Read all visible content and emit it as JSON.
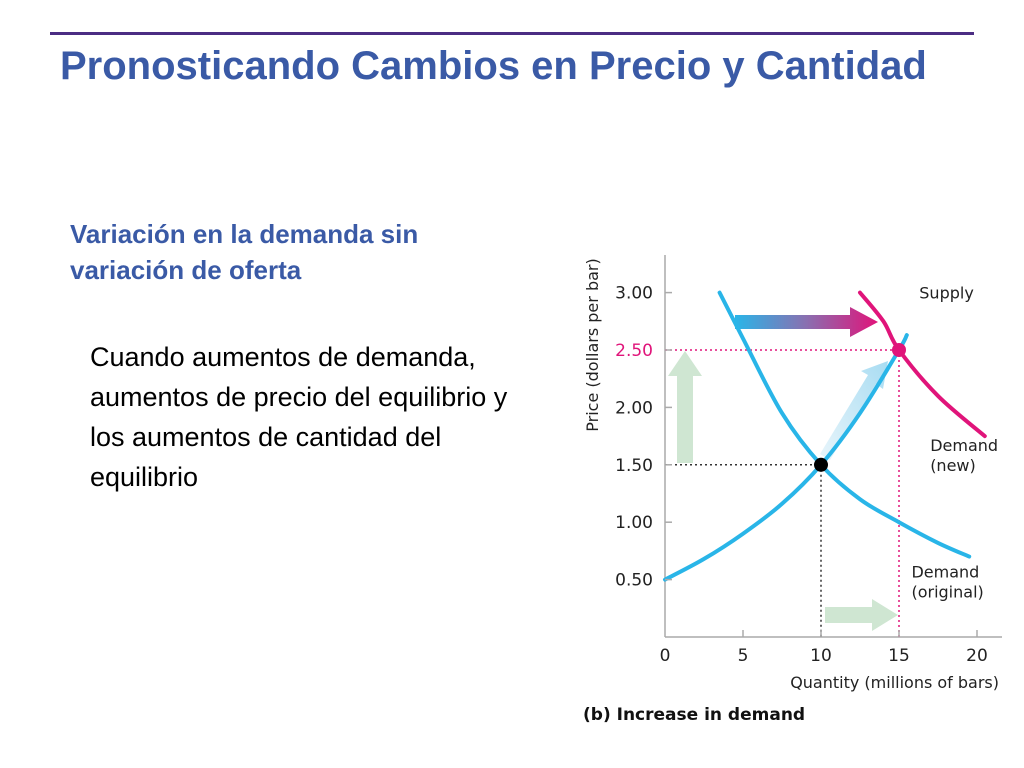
{
  "slide": {
    "title": "Pronosticando Cambios en Precio y Cantidad",
    "subtitle": "Variación en la demanda sin variación de oferta",
    "body": "Cuando aumentos de demanda, aumentos de precio del equilibrio y los aumentos de cantidad del equilibrio"
  },
  "colors": {
    "title": "#3a5aa6",
    "rule": "#4b2d83",
    "curve_blue": "#29b5e8",
    "curve_magenta": "#e0147a",
    "arrow_green": "#cfe6d2"
  },
  "chart_data": {
    "type": "line",
    "caption": "(b) Increase in demand",
    "xlabel": "Quantity (millions of bars)",
    "ylabel": "Price (dollars per bar)",
    "xlim": [
      0,
      21
    ],
    "ylim": [
      0,
      3.3
    ],
    "xticks": [
      0,
      5,
      10,
      15,
      20
    ],
    "yticks": [
      0.5,
      1.0,
      1.5,
      2.0,
      2.5,
      3.0
    ],
    "xtick_labels": [
      "0",
      "5",
      "10",
      "15",
      "20"
    ],
    "ytick_labels": [
      "0.50",
      "1.00",
      "1.50",
      "2.00",
      "2.50",
      "3.00"
    ],
    "series": [
      {
        "name": "Supply",
        "color": "#29b5e8",
        "x": [
          0,
          2.5,
          5,
          7.5,
          10,
          12.5,
          15,
          15.5
        ],
        "y": [
          0.5,
          0.68,
          0.9,
          1.16,
          1.5,
          1.95,
          2.5,
          2.63
        ]
      },
      {
        "name": "Demand (original)",
        "color": "#29b5e8",
        "x": [
          3.5,
          5,
          7.5,
          10,
          12.5,
          15,
          17.5,
          19.5
        ],
        "y": [
          3.0,
          2.6,
          1.95,
          1.5,
          1.2,
          1.0,
          0.82,
          0.7
        ]
      },
      {
        "name": "Demand (new)",
        "color": "#e0147a",
        "x": [
          12.5,
          14,
          15,
          17.5,
          20.5
        ],
        "y": [
          3.0,
          2.75,
          2.5,
          2.1,
          1.75
        ]
      }
    ],
    "curve_labels": [
      {
        "lines": [
          "Supply"
        ],
        "x": 16.3,
        "y": 2.95
      },
      {
        "lines": [
          "Demand",
          "(new)"
        ],
        "x": 17,
        "y": 1.62
      },
      {
        "lines": [
          "Demand",
          "(original)"
        ],
        "x": 15.8,
        "y": 0.52
      }
    ],
    "points": [
      {
        "x": 10,
        "y": 1.5,
        "color": "#000000"
      },
      {
        "x": 15,
        "y": 2.5,
        "color": "#e0147a"
      }
    ],
    "dotted_guides": [
      {
        "x": 10,
        "y": 1.5,
        "color": "#333333"
      },
      {
        "x": 15,
        "y": 2.5,
        "color": "#e0147a"
      }
    ]
  }
}
